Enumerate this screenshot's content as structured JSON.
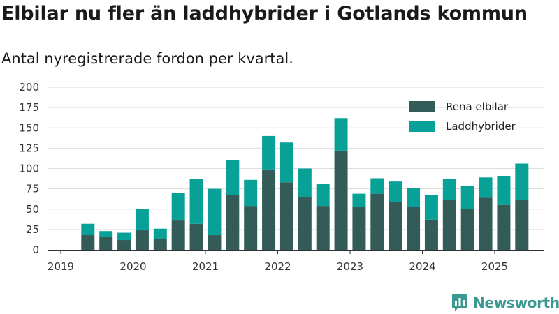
{
  "header": {
    "title": "Elbilar nu fler än laddhybrider i Gotlands kommun",
    "subtitle": "Antal nyregistrerade fordon per kvartal."
  },
  "brand": {
    "name": "Newsworthy",
    "icon": "bar-chart-speech-bubble-icon",
    "color": "#3a9a92"
  },
  "chart_data": {
    "type": "bar",
    "stacked": true,
    "categories": [
      "2019 Q2",
      "2019 Q3",
      "2019 Q4",
      "2020 Q1",
      "2020 Q2",
      "2020 Q3",
      "2020 Q4",
      "2021 Q1",
      "2021 Q2",
      "2021 Q3",
      "2021 Q4",
      "2022 Q1",
      "2022 Q2",
      "2022 Q3",
      "2022 Q4",
      "2023 Q1",
      "2023 Q2",
      "2023 Q3",
      "2023 Q4",
      "2024 Q1",
      "2024 Q2",
      "2024 Q3",
      "2024 Q4",
      "2025 Q1",
      "2025 Q2"
    ],
    "series": [
      {
        "name": "Rena elbilar",
        "color": "#335c58",
        "values": [
          18,
          16,
          12,
          24,
          13,
          36,
          32,
          18,
          67,
          54,
          99,
          83,
          65,
          54,
          122,
          53,
          69,
          59,
          53,
          37,
          61,
          50,
          64,
          55,
          61
        ]
      },
      {
        "name": "Laddhybrider",
        "color": "#07a197",
        "values": [
          14,
          7,
          9,
          26,
          13,
          34,
          55,
          57,
          43,
          32,
          41,
          49,
          35,
          27,
          40,
          16,
          19,
          25,
          23,
          30,
          26,
          29,
          25,
          36,
          45
        ]
      }
    ],
    "x_ticks": [
      "2019",
      "2020",
      "2021",
      "2022",
      "2023",
      "2024",
      "2025"
    ],
    "y_ticks": [
      0,
      25,
      50,
      75,
      100,
      125,
      150,
      175,
      200
    ],
    "ylim": [
      0,
      200
    ],
    "grid": true,
    "legend": "top-right"
  }
}
